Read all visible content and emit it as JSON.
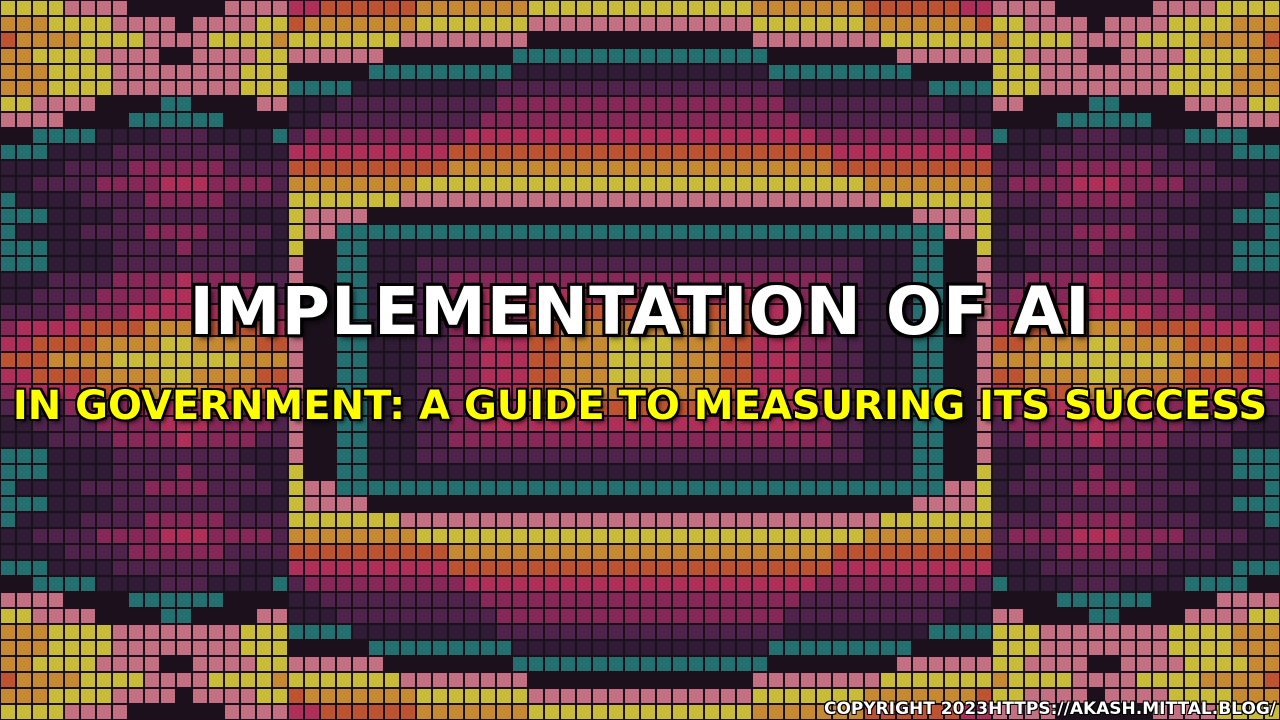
{
  "banner": {
    "title": "IMPLEMENTATION OF AI",
    "subtitle": "IN GOVERNMENT: A GUIDE TO MEASURING ITS SUCCESS",
    "copyright": "COPYRIGHT 2023HTTPS://AKASH.MITTAL.BLOG/"
  },
  "background": {
    "description_icon": "mosaic-tile-pattern",
    "palette": [
      "#f5e642",
      "#f2a93b",
      "#e8663a",
      "#d63a6e",
      "#a3306a",
      "#5e2a5c",
      "#3a2340",
      "#2b8a8a",
      "#1f1420",
      "#f08aa0"
    ]
  }
}
